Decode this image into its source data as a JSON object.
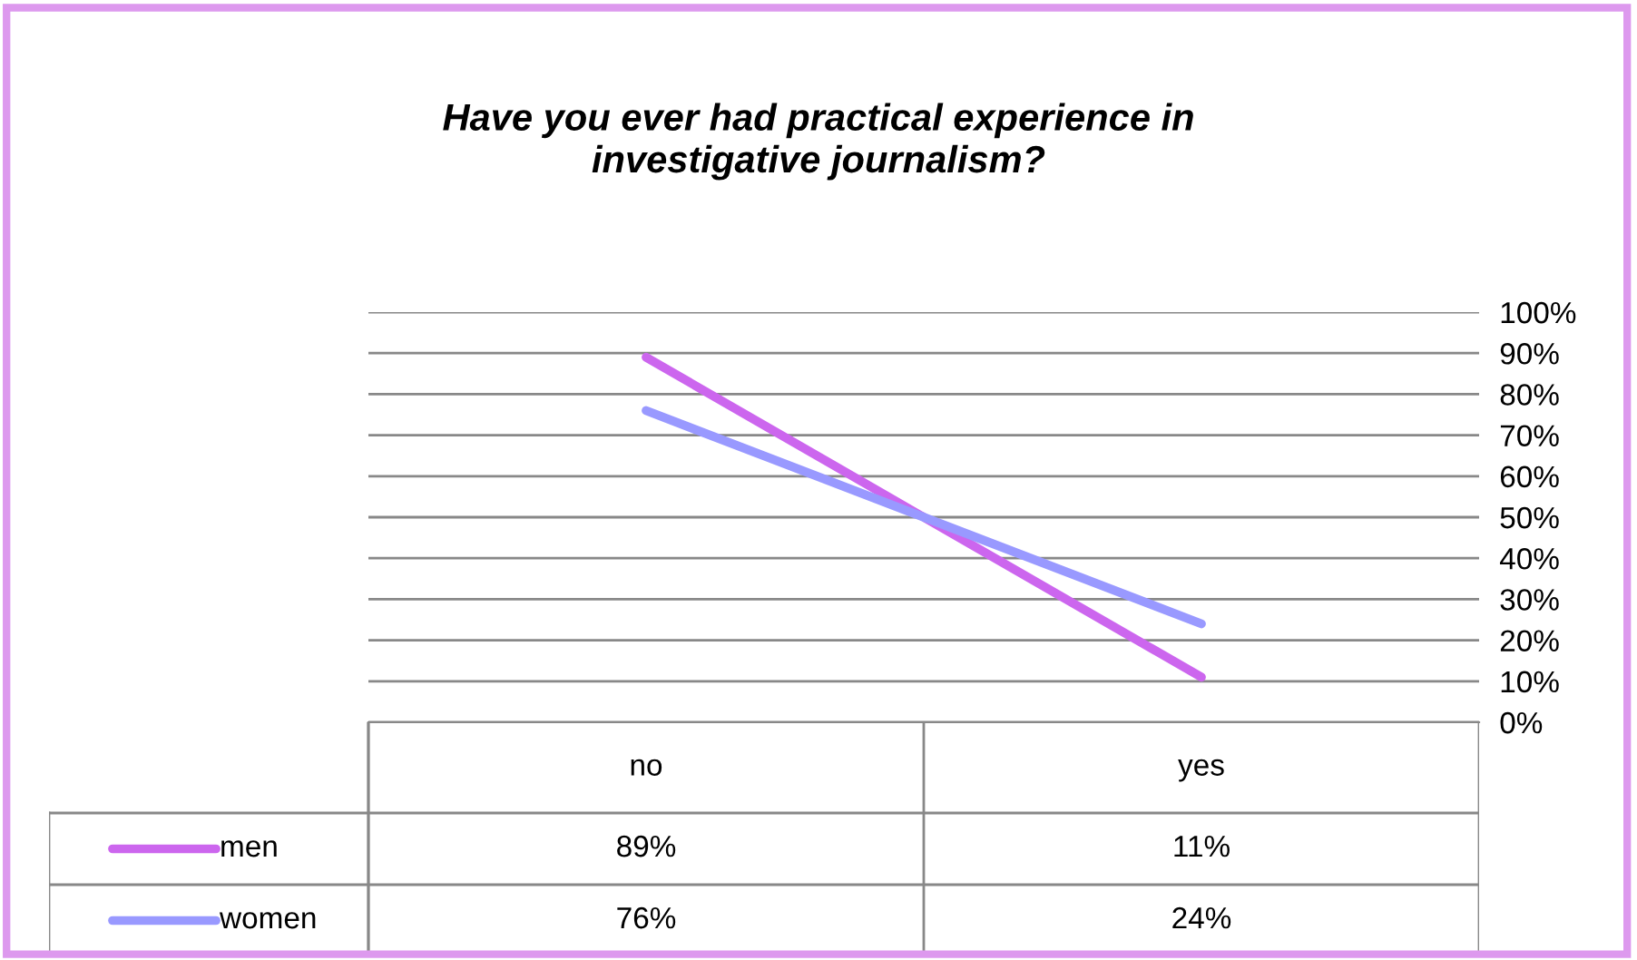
{
  "chart_data": {
    "type": "line",
    "title": "Have you ever had practical experience in\ninvestigative journalism?",
    "categories": [
      "no",
      "yes"
    ],
    "series": [
      {
        "name": "men",
        "color": "#cc66ee",
        "values": [
          89,
          11
        ],
        "value_labels": [
          "89%",
          "11%"
        ]
      },
      {
        "name": "women",
        "color": "#9999ff",
        "values": [
          76,
          24
        ],
        "value_labels": [
          "76%",
          "24%"
        ]
      }
    ],
    "ylim": [
      0,
      100
    ],
    "yticks": [
      {
        "value": 0,
        "label": "0%"
      },
      {
        "value": 10,
        "label": "10%"
      },
      {
        "value": 20,
        "label": "20%"
      },
      {
        "value": 30,
        "label": "30%"
      },
      {
        "value": 40,
        "label": "40%"
      },
      {
        "value": 50,
        "label": "50%"
      },
      {
        "value": 60,
        "label": "60%"
      },
      {
        "value": 70,
        "label": "70%"
      },
      {
        "value": 80,
        "label": "80%"
      },
      {
        "value": 90,
        "label": "90%"
      },
      {
        "value": 100,
        "label": "100%"
      }
    ],
    "grid": "y",
    "legend": "bottom",
    "marker": "none",
    "line_style": "solid"
  }
}
